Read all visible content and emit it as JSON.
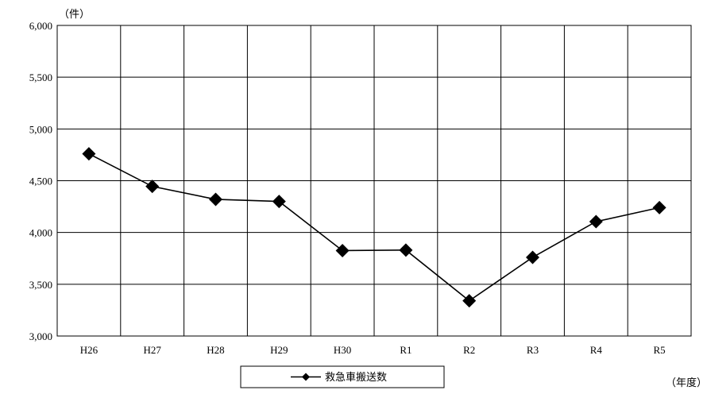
{
  "chart_data": {
    "type": "line",
    "title": "",
    "y_unit_label": "（件）",
    "x_unit_label": "（年度）",
    "categories": [
      "H26",
      "H27",
      "H28",
      "H29",
      "H30",
      "R1",
      "R2",
      "R3",
      "R4",
      "R5"
    ],
    "series": [
      {
        "name": "救急車搬送数",
        "values": [
          4760,
          4445,
          4320,
          4300,
          3825,
          3830,
          3340,
          3760,
          4105,
          4240
        ],
        "color": "#000000",
        "marker": "diamond"
      }
    ],
    "ylim": [
      3000,
      6000
    ],
    "yticks": [
      3000,
      3500,
      4000,
      4500,
      5000,
      5500,
      6000
    ],
    "ytick_labels": [
      "3,000",
      "3,500",
      "4,000",
      "4,500",
      "5,000",
      "5,500",
      "6,000"
    ],
    "grid": true,
    "legend_position": "bottom-center"
  }
}
